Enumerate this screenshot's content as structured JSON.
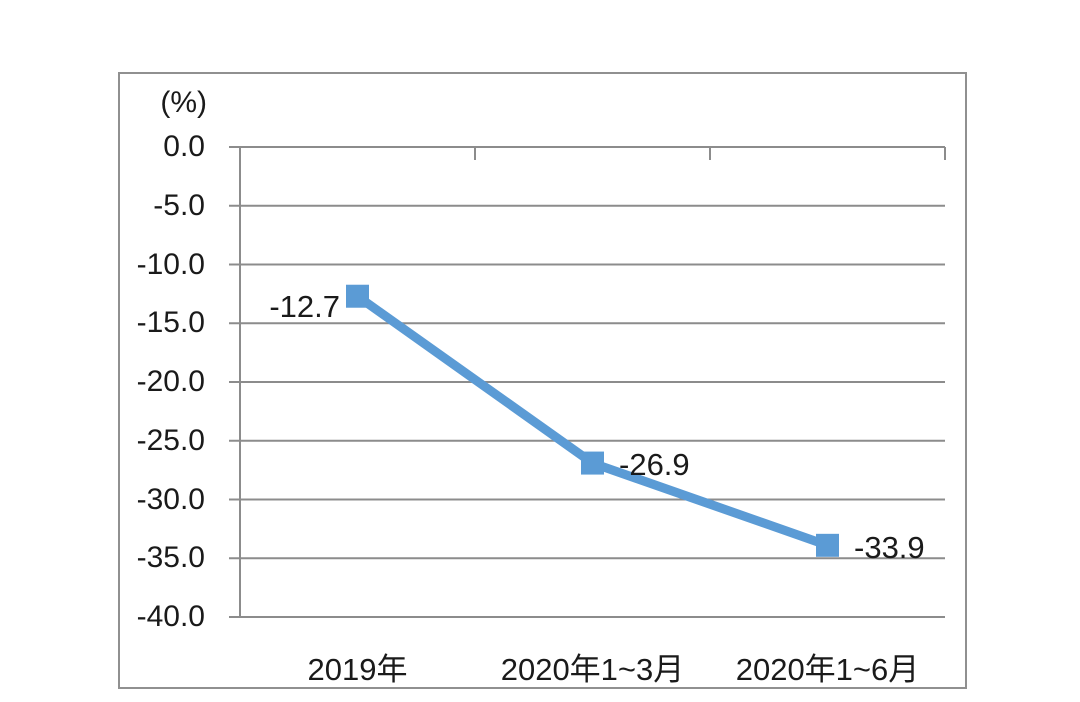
{
  "chart_data": {
    "type": "line",
    "title": "",
    "ylabel": "(%)",
    "xlabel": "",
    "categories": [
      "2019年",
      "2020年1~3月",
      "2020年1~6月"
    ],
    "series": [
      {
        "name": "",
        "values": [
          -12.7,
          -26.9,
          -33.9
        ],
        "data_labels": [
          "-12.7",
          "-26.9",
          "-33.9"
        ],
        "data_label_sides": [
          "left",
          "right",
          "right"
        ]
      }
    ],
    "ylim": [
      0,
      -40
    ],
    "ytick_values": [
      0,
      -5,
      -10,
      -15,
      -20,
      -25,
      -30,
      -35,
      -40
    ],
    "ytick_labels": [
      "0.0",
      "-5.0",
      "-10.0",
      "-15.0",
      "-20.0",
      "-25.0",
      "-30.0",
      "-35.0",
      "-40.0"
    ],
    "grid": true,
    "legend": "none",
    "marker": "square",
    "colors": {
      "line": "#5B9BD5",
      "marker": "#5B9BD5",
      "gridline": "#8C8C8C",
      "axis": "#8C8C8C",
      "border": "#909090",
      "text": "#1A1A1A",
      "background": "#FFFFFF"
    }
  }
}
